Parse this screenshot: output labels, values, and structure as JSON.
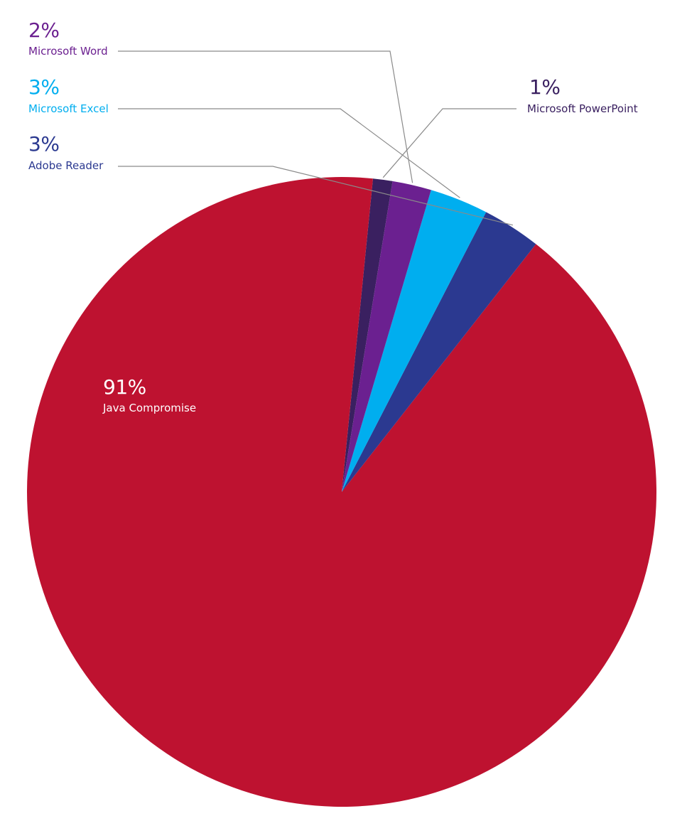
{
  "chart_data": {
    "type": "pie",
    "title": "",
    "slices": [
      {
        "label": "Java Compromise",
        "value": 91,
        "value_label": "91%",
        "color": "#BE1230"
      },
      {
        "label": "Adobe Reader",
        "value": 3,
        "value_label": "3%",
        "color": "#2B3990"
      },
      {
        "label": "Microsoft Excel",
        "value": 3,
        "value_label": "3%",
        "color": "#00AEEF"
      },
      {
        "label": "Microsoft Word",
        "value": 2,
        "value_label": "2%",
        "color": "#6B2090"
      },
      {
        "label": "Microsoft PowerPoint",
        "value": 1,
        "value_label": "1%",
        "color": "#3A2060"
      }
    ],
    "legend": "none"
  }
}
